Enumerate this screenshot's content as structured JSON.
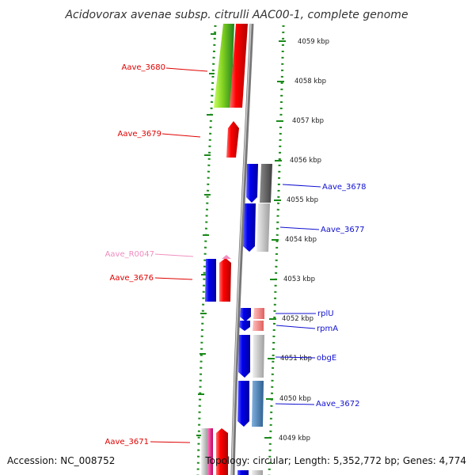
{
  "title": "Acidovorax avenae subsp. citrulli AAC00-1, complete genome",
  "accession": "Accession: NC_008752",
  "topology": "Topology: circular; Length: 5,352,772 bp; Genes: 4,774",
  "ruler": {
    "labels": [
      "4059 kbp",
      "4058 kbp",
      "4057 kbp",
      "4056 kbp",
      "4055 kbp",
      "4054 kbp",
      "4053 kbp",
      "4052 kbp",
      "4051 kbp",
      "4050 kbp",
      "4049 kbp"
    ]
  },
  "gene_labels": [
    {
      "text": "Aave_3680",
      "side": "left",
      "color": "#e00000"
    },
    {
      "text": "Aave_3679",
      "side": "left",
      "color": "#e00000"
    },
    {
      "text": "Aave_R0047",
      "side": "left",
      "color": "#f08cc0"
    },
    {
      "text": "Aave_3676",
      "side": "left",
      "color": "#e00000"
    },
    {
      "text": "Aave_3671",
      "side": "left",
      "color": "#e00000"
    },
    {
      "text": "Aave_3678",
      "side": "right",
      "color": "#1010d0"
    },
    {
      "text": "Aave_3677",
      "side": "right",
      "color": "#1010d0"
    },
    {
      "text": "rplU",
      "side": "right",
      "color": "#1010d0"
    },
    {
      "text": "rpmA",
      "side": "right",
      "color": "#1010d0"
    },
    {
      "text": "obgE",
      "side": "right",
      "color": "#1010d0"
    },
    {
      "text": "Aave_3672",
      "side": "right",
      "color": "#1010d0"
    }
  ],
  "colors": {
    "forward_gene": "#f00000",
    "reverse_gene": "#0000e8",
    "rna_gene": "#f090c0",
    "ruler_ticks": "#1a8a1a",
    "backbone": "#909090"
  }
}
